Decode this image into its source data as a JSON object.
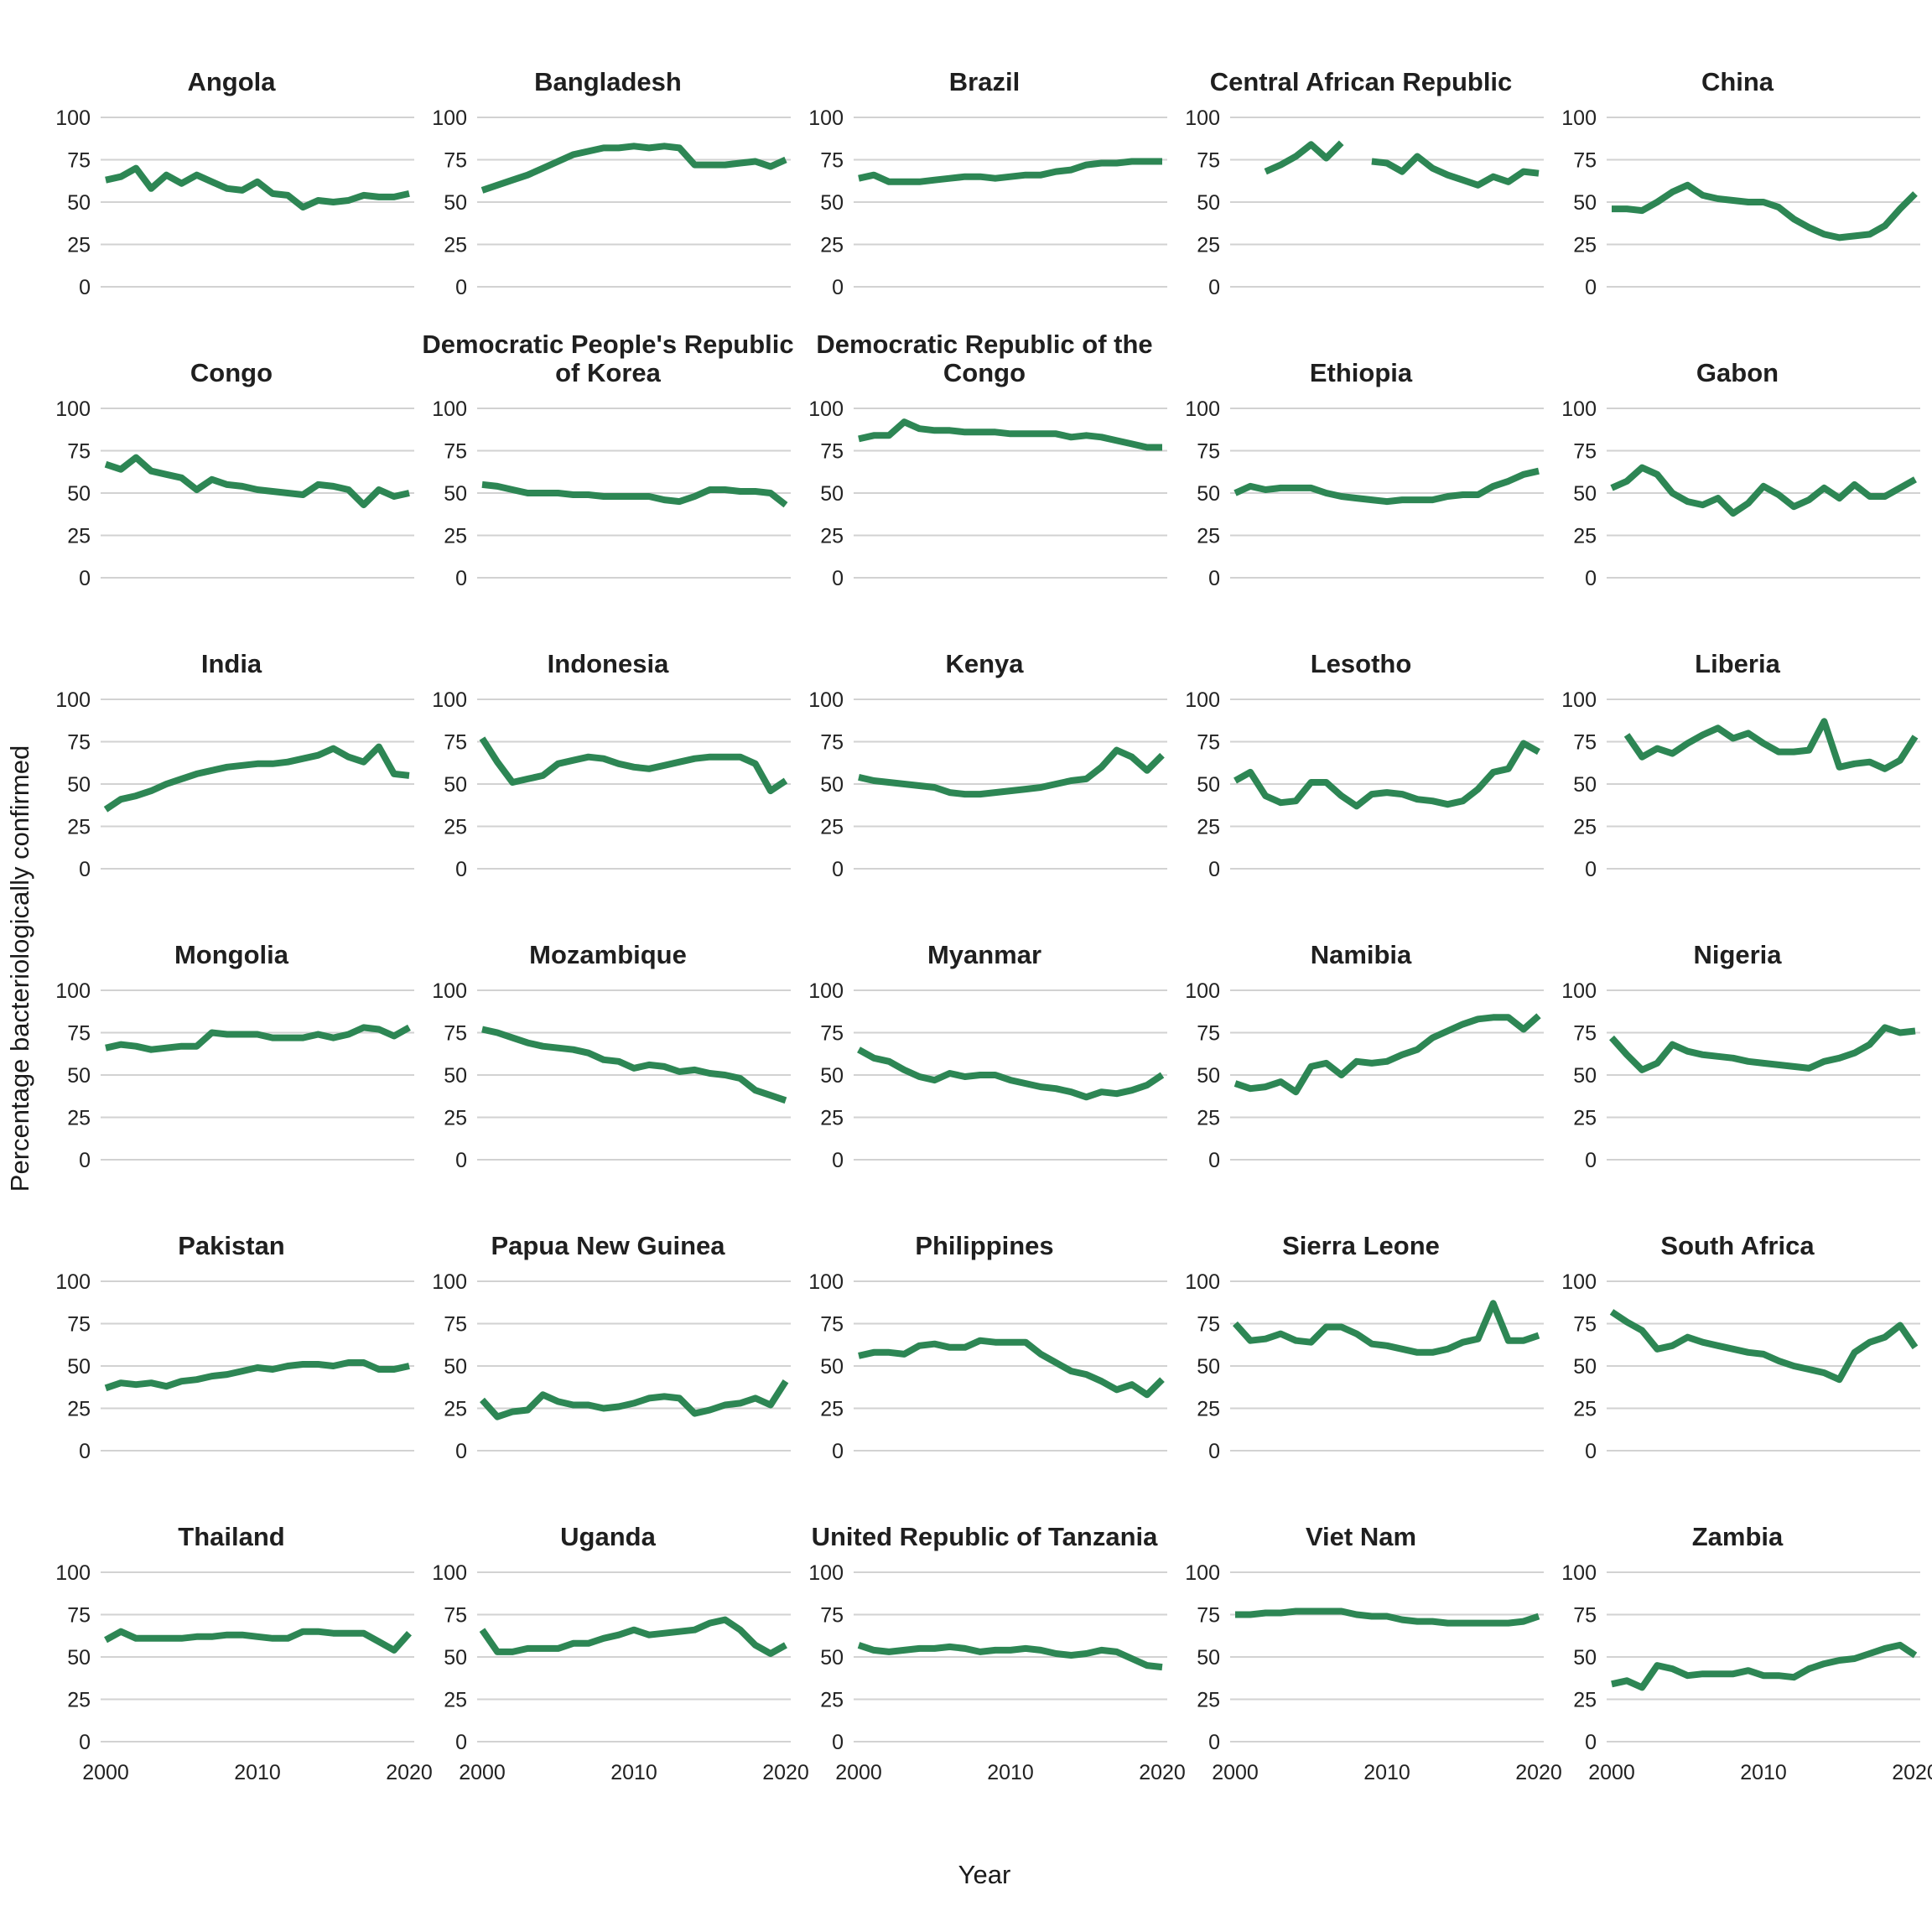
{
  "figure": {
    "y_axis_title": "Percentage bacteriologically confirmed",
    "x_axis_title": "Year",
    "line_color": "#2d8654",
    "grid_color": "#d2d2d2",
    "tick_label_color": "#222222",
    "y_ticks": [
      100,
      75,
      50,
      25,
      0
    ],
    "x_ticks": [
      2000,
      2010,
      2020
    ]
  },
  "chart_data": {
    "type": "line",
    "title": "",
    "xlabel": "Year",
    "ylabel": "Percentage bacteriologically confirmed",
    "ylim": [
      0,
      100
    ],
    "grid": "horizontal",
    "legend": "none",
    "x": [
      2000,
      2001,
      2002,
      2003,
      2004,
      2005,
      2006,
      2007,
      2008,
      2009,
      2010,
      2011,
      2012,
      2013,
      2014,
      2015,
      2016,
      2017,
      2018,
      2019,
      2020
    ],
    "facets": [
      {
        "name": "Angola",
        "values": [
          63,
          65,
          70,
          58,
          66,
          61,
          66,
          62,
          58,
          57,
          62,
          55,
          54,
          47,
          51,
          50,
          51,
          54,
          53,
          53,
          55
        ]
      },
      {
        "name": "Bangladesh",
        "values": [
          57,
          60,
          63,
          66,
          70,
          74,
          78,
          80,
          82,
          82,
          83,
          82,
          83,
          82,
          72,
          72,
          72,
          73,
          74,
          71,
          75
        ]
      },
      {
        "name": "Brazil",
        "values": [
          64,
          66,
          62,
          62,
          62,
          63,
          64,
          65,
          65,
          64,
          65,
          66,
          66,
          68,
          69,
          72,
          73,
          73,
          74,
          74,
          74
        ]
      },
      {
        "name": "Central African\nRepublic",
        "values": [
          null,
          null,
          68,
          72,
          77,
          84,
          76,
          85,
          null,
          74,
          73,
          68,
          77,
          70,
          66,
          63,
          60,
          65,
          62,
          68,
          67
        ]
      },
      {
        "name": "China",
        "values": [
          46,
          46,
          45,
          50,
          56,
          60,
          54,
          52,
          51,
          50,
          50,
          47,
          40,
          35,
          31,
          29,
          30,
          31,
          36,
          46,
          55
        ]
      },
      {
        "name": "Congo",
        "values": [
          67,
          64,
          71,
          63,
          61,
          59,
          52,
          58,
          55,
          54,
          52,
          51,
          50,
          49,
          55,
          54,
          52,
          43,
          52,
          48,
          50
        ]
      },
      {
        "name": "Democratic People's\nRepublic of Korea",
        "values": [
          55,
          54,
          52,
          50,
          50,
          50,
          49,
          49,
          48,
          48,
          48,
          48,
          46,
          45,
          48,
          52,
          52,
          51,
          51,
          50,
          43
        ]
      },
      {
        "name": "Democratic Republic\nof the Congo",
        "values": [
          82,
          84,
          84,
          92,
          88,
          87,
          87,
          86,
          86,
          86,
          85,
          85,
          85,
          85,
          83,
          84,
          83,
          81,
          79,
          77,
          77
        ]
      },
      {
        "name": "Ethiopia",
        "values": [
          50,
          54,
          52,
          53,
          53,
          53,
          50,
          48,
          47,
          46,
          45,
          46,
          46,
          46,
          48,
          49,
          49,
          54,
          57,
          61,
          63
        ]
      },
      {
        "name": "Gabon",
        "values": [
          53,
          57,
          65,
          61,
          50,
          45,
          43,
          47,
          38,
          44,
          54,
          49,
          42,
          46,
          53,
          47,
          55,
          48,
          48,
          53,
          58
        ]
      },
      {
        "name": "India",
        "values": [
          35,
          41,
          43,
          46,
          50,
          53,
          56,
          58,
          60,
          61,
          62,
          62,
          63,
          65,
          67,
          71,
          66,
          63,
          72,
          56,
          55
        ]
      },
      {
        "name": "Indonesia",
        "values": [
          77,
          63,
          51,
          53,
          55,
          62,
          64,
          66,
          65,
          62,
          60,
          59,
          61,
          63,
          65,
          66,
          66,
          66,
          62,
          46,
          52
        ]
      },
      {
        "name": "Kenya",
        "values": [
          54,
          52,
          51,
          50,
          49,
          48,
          45,
          44,
          44,
          45,
          46,
          47,
          48,
          50,
          52,
          53,
          60,
          70,
          66,
          58,
          67
        ]
      },
      {
        "name": "Lesotho",
        "values": [
          52,
          57,
          43,
          39,
          40,
          51,
          51,
          43,
          37,
          44,
          45,
          44,
          41,
          40,
          38,
          40,
          47,
          57,
          59,
          74,
          69
        ]
      },
      {
        "name": "Liberia",
        "values": [
          null,
          79,
          66,
          71,
          68,
          74,
          79,
          83,
          77,
          80,
          74,
          69,
          69,
          70,
          87,
          60,
          62,
          63,
          59,
          64,
          78
        ]
      },
      {
        "name": "Mongolia",
        "values": [
          66,
          68,
          67,
          65,
          66,
          67,
          67,
          75,
          74,
          74,
          74,
          72,
          72,
          72,
          74,
          72,
          74,
          78,
          77,
          73,
          78
        ]
      },
      {
        "name": "Mozambique",
        "values": [
          77,
          75,
          72,
          69,
          67,
          66,
          65,
          63,
          59,
          58,
          54,
          56,
          55,
          52,
          53,
          51,
          50,
          48,
          41,
          38,
          35
        ]
      },
      {
        "name": "Myanmar",
        "values": [
          65,
          60,
          58,
          53,
          49,
          47,
          51,
          49,
          50,
          50,
          47,
          45,
          43,
          42,
          40,
          37,
          40,
          39,
          41,
          44,
          50
        ]
      },
      {
        "name": "Namibia",
        "values": [
          45,
          42,
          43,
          46,
          40,
          55,
          57,
          50,
          58,
          57,
          58,
          62,
          65,
          72,
          76,
          80,
          83,
          84,
          84,
          77,
          85
        ]
      },
      {
        "name": "Nigeria",
        "values": [
          72,
          62,
          53,
          57,
          68,
          64,
          62,
          61,
          60,
          58,
          57,
          56,
          55,
          54,
          58,
          60,
          63,
          68,
          78,
          75,
          76
        ]
      },
      {
        "name": "Pakistan",
        "values": [
          37,
          40,
          39,
          40,
          38,
          41,
          42,
          44,
          45,
          47,
          49,
          48,
          50,
          51,
          51,
          50,
          52,
          52,
          48,
          48,
          50
        ]
      },
      {
        "name": "Papua New Guinea",
        "values": [
          30,
          20,
          23,
          24,
          33,
          29,
          27,
          27,
          25,
          26,
          28,
          31,
          32,
          31,
          22,
          24,
          27,
          28,
          31,
          27,
          41
        ]
      },
      {
        "name": "Philippines",
        "values": [
          56,
          58,
          58,
          57,
          62,
          63,
          61,
          61,
          65,
          64,
          64,
          64,
          57,
          52,
          47,
          45,
          41,
          36,
          39,
          33,
          42
        ]
      },
      {
        "name": "Sierra Leone",
        "values": [
          75,
          65,
          66,
          69,
          65,
          64,
          73,
          73,
          69,
          63,
          62,
          60,
          58,
          58,
          60,
          64,
          66,
          87,
          65,
          65,
          68
        ]
      },
      {
        "name": "South Africa",
        "values": [
          82,
          76,
          71,
          60,
          62,
          67,
          64,
          62,
          60,
          58,
          57,
          53,
          50,
          48,
          46,
          42,
          58,
          64,
          67,
          74,
          61
        ]
      },
      {
        "name": "Thailand",
        "values": [
          60,
          65,
          61,
          61,
          61,
          61,
          62,
          62,
          63,
          63,
          62,
          61,
          61,
          65,
          65,
          64,
          64,
          64,
          59,
          54,
          64
        ]
      },
      {
        "name": "Uganda",
        "values": [
          66,
          53,
          53,
          55,
          55,
          55,
          58,
          58,
          61,
          63,
          66,
          63,
          64,
          65,
          66,
          70,
          72,
          66,
          57,
          52,
          57
        ]
      },
      {
        "name": "United Republic of\nTanzania",
        "values": [
          57,
          54,
          53,
          54,
          55,
          55,
          56,
          55,
          53,
          54,
          54,
          55,
          54,
          52,
          51,
          52,
          54,
          53,
          49,
          45,
          44
        ]
      },
      {
        "name": "Viet Nam",
        "values": [
          75,
          75,
          76,
          76,
          77,
          77,
          77,
          77,
          75,
          74,
          74,
          72,
          71,
          71,
          70,
          70,
          70,
          70,
          70,
          71,
          74
        ]
      },
      {
        "name": "Zambia",
        "values": [
          34,
          36,
          32,
          45,
          43,
          39,
          40,
          40,
          40,
          42,
          39,
          39,
          38,
          43,
          46,
          48,
          49,
          52,
          55,
          57,
          51
        ]
      }
    ]
  }
}
